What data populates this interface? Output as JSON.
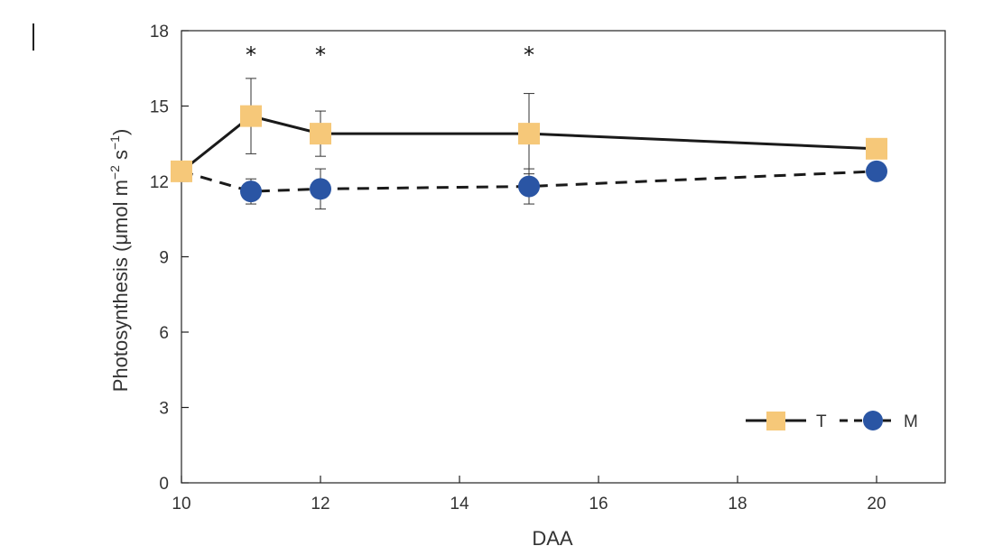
{
  "chart_data": {
    "type": "line",
    "xlabel": "DAA",
    "ylabel": "Photosynthesis (μmol m−2 s−1)",
    "ylabel_parts": {
      "base": "Photosynthesis (μmol m",
      "sup1": "−2",
      "mid": " s",
      "sup2": "−1",
      "end": ")"
    },
    "xlim": [
      10,
      21
    ],
    "ylim": [
      0,
      18
    ],
    "x_ticks": [
      10,
      12,
      14,
      16,
      18,
      20
    ],
    "y_ticks": [
      0,
      3,
      6,
      9,
      12,
      15,
      18
    ],
    "grid": false,
    "legend_position": "bottom-right",
    "series": [
      {
        "name": "T",
        "marker": "square",
        "line": "solid",
        "color": "#F6C879",
        "x": [
          10,
          11,
          12,
          15,
          20
        ],
        "values": [
          12.4,
          14.6,
          13.9,
          13.9,
          13.3
        ],
        "error": [
          0.3,
          1.5,
          0.9,
          1.6,
          0.4
        ]
      },
      {
        "name": "M",
        "marker": "circle",
        "line": "dashed",
        "color": "#2A55A4",
        "x": [
          10,
          11,
          12,
          15,
          20
        ],
        "values": [
          12.4,
          11.6,
          11.7,
          11.8,
          12.4
        ],
        "error": [
          0.3,
          0.5,
          0.8,
          0.7,
          0.2
        ]
      }
    ],
    "annotations": [
      {
        "text": "*",
        "x": 11
      },
      {
        "text": "*",
        "x": 12
      },
      {
        "text": "*",
        "x": 15
      }
    ]
  }
}
